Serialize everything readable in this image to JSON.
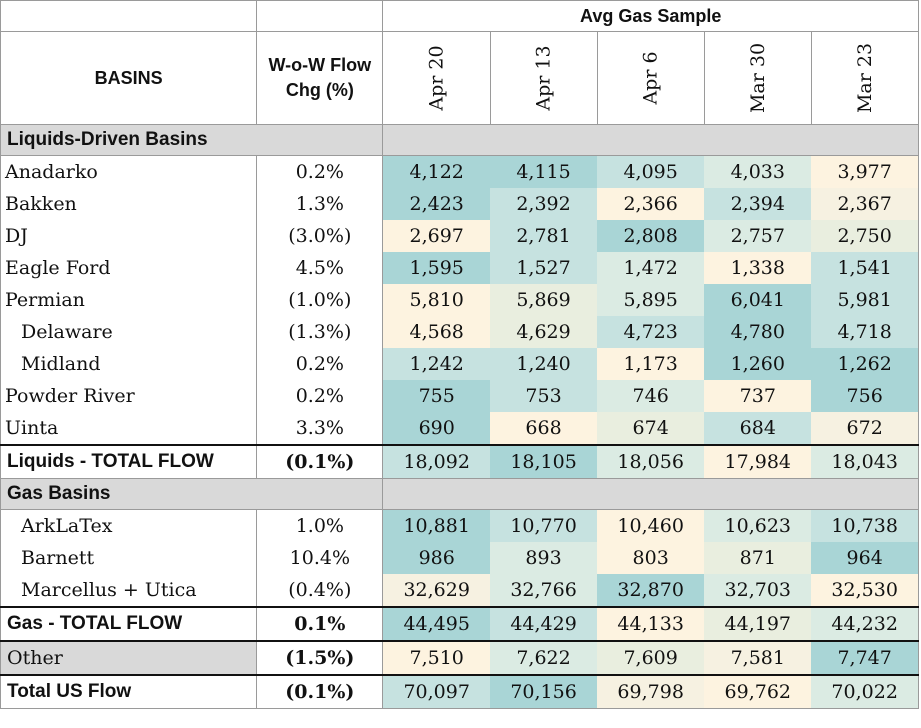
{
  "header": {
    "group_label": "Avg Gas Sample",
    "basins_label": "BASINS",
    "wow_label_line1": "W-o-W Flow",
    "wow_label_line2": "Chg (%)",
    "dates": [
      "Apr 20",
      "Apr 13",
      "Apr 6",
      "Mar 30",
      "Mar 23"
    ]
  },
  "colors": {
    "teal_dark": "#a9d5d6",
    "teal_mid": "#c6e2e0",
    "teal_light": "#dbebe3",
    "neutral": "#e9eedf",
    "cream_light": "#f6f1e1",
    "cream": "#fdf3e0",
    "section_gray": "#d9d9d9"
  },
  "sections": [
    {
      "label": "Liquids-Driven Basins",
      "rows": [
        {
          "name": "Anadarko",
          "sub": false,
          "wow": "0.2%",
          "values": [
            "4,122",
            "4,115",
            "4,095",
            "4,033",
            "3,977"
          ],
          "tone": [
            "teal_dark",
            "teal_dark",
            "teal_mid",
            "teal_light",
            "cream"
          ]
        },
        {
          "name": "Bakken",
          "sub": false,
          "wow": "1.3%",
          "values": [
            "2,423",
            "2,392",
            "2,366",
            "2,394",
            "2,367"
          ],
          "tone": [
            "teal_dark",
            "teal_mid",
            "cream",
            "teal_mid",
            "cream_light"
          ]
        },
        {
          "name": "DJ",
          "sub": false,
          "wow": "(3.0%)",
          "values": [
            "2,697",
            "2,781",
            "2,808",
            "2,757",
            "2,750"
          ],
          "tone": [
            "cream",
            "teal_mid",
            "teal_dark",
            "teal_light",
            "neutral"
          ]
        },
        {
          "name": "Eagle Ford",
          "sub": false,
          "wow": "4.5%",
          "values": [
            "1,595",
            "1,527",
            "1,472",
            "1,338",
            "1,541"
          ],
          "tone": [
            "teal_dark",
            "teal_mid",
            "teal_light",
            "cream",
            "teal_mid"
          ]
        },
        {
          "name": "Permian",
          "sub": false,
          "wow": "(1.0%)",
          "values": [
            "5,810",
            "5,869",
            "5,895",
            "6,041",
            "5,981"
          ],
          "tone": [
            "cream",
            "neutral",
            "teal_light",
            "teal_dark",
            "teal_mid"
          ]
        },
        {
          "name": "Delaware",
          "sub": true,
          "wow": "(1.3%)",
          "values": [
            "4,568",
            "4,629",
            "4,723",
            "4,780",
            "4,718"
          ],
          "tone": [
            "cream",
            "neutral",
            "teal_mid",
            "teal_dark",
            "teal_mid"
          ]
        },
        {
          "name": "Midland",
          "sub": true,
          "wow": "0.2%",
          "values": [
            "1,242",
            "1,240",
            "1,173",
            "1,260",
            "1,262"
          ],
          "tone": [
            "teal_mid",
            "teal_mid",
            "cream",
            "teal_dark",
            "teal_dark"
          ]
        },
        {
          "name": "Powder River",
          "sub": false,
          "wow": "0.2%",
          "values": [
            "755",
            "753",
            "746",
            "737",
            "756"
          ],
          "tone": [
            "teal_dark",
            "teal_mid",
            "teal_light",
            "cream",
            "teal_dark"
          ]
        },
        {
          "name": "Uinta",
          "sub": false,
          "wow": "3.3%",
          "values": [
            "690",
            "668",
            "674",
            "684",
            "672"
          ],
          "tone": [
            "teal_dark",
            "cream",
            "neutral",
            "teal_mid",
            "cream_light"
          ]
        }
      ],
      "total": {
        "name": "Liquids - TOTAL FLOW",
        "wow": "(0.1%)",
        "values": [
          "18,092",
          "18,105",
          "18,056",
          "17,984",
          "18,043"
        ],
        "tone": [
          "teal_mid",
          "teal_dark",
          "teal_light",
          "cream",
          "teal_light"
        ]
      }
    },
    {
      "label": "Gas Basins",
      "rows": [
        {
          "name": "ArkLaTex",
          "sub": true,
          "wow": "1.0%",
          "values": [
            "10,881",
            "10,770",
            "10,460",
            "10,623",
            "10,738"
          ],
          "tone": [
            "teal_dark",
            "teal_mid",
            "cream",
            "teal_light",
            "teal_mid"
          ]
        },
        {
          "name": "Barnett",
          "sub": true,
          "wow": "10.4%",
          "values": [
            "986",
            "893",
            "803",
            "871",
            "964"
          ],
          "tone": [
            "teal_dark",
            "teal_light",
            "cream",
            "neutral",
            "teal_dark"
          ]
        },
        {
          "name": "Marcellus + Utica",
          "sub": true,
          "wow": "(0.4%)",
          "values": [
            "32,629",
            "32,766",
            "32,870",
            "32,703",
            "32,530"
          ],
          "tone": [
            "cream_light",
            "teal_light",
            "teal_dark",
            "teal_light",
            "cream"
          ]
        }
      ],
      "total": {
        "name": "Gas - TOTAL FLOW",
        "wow": "0.1%",
        "values": [
          "44,495",
          "44,429",
          "44,133",
          "44,197",
          "44,232"
        ],
        "tone": [
          "teal_dark",
          "teal_mid",
          "cream",
          "neutral",
          "teal_light"
        ]
      }
    }
  ],
  "other": {
    "name": "Other",
    "wow": "(1.5%)",
    "values": [
      "7,510",
      "7,622",
      "7,609",
      "7,581",
      "7,747"
    ],
    "tone": [
      "cream",
      "teal_light",
      "neutral",
      "cream_light",
      "teal_dark"
    ]
  },
  "total_us": {
    "name": "Total US Flow",
    "wow": "(0.1%)",
    "values": [
      "70,097",
      "70,156",
      "69,798",
      "69,762",
      "70,022"
    ],
    "tone": [
      "teal_mid",
      "teal_dark",
      "cream_light",
      "cream",
      "teal_light"
    ]
  }
}
